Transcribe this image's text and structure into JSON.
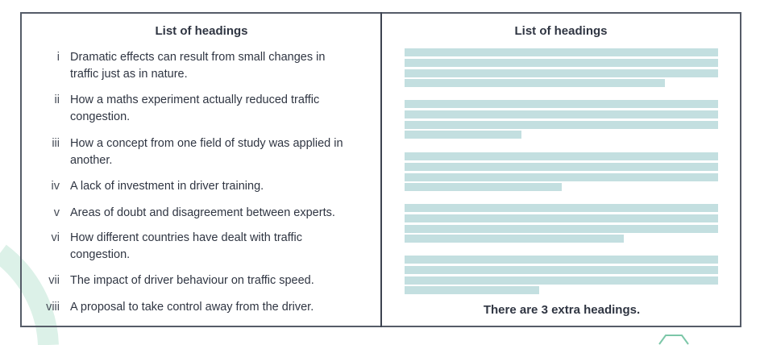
{
  "left_panel": {
    "title": "List of headings",
    "items": [
      {
        "numeral": "i",
        "text": "Dramatic effects can result from small changes in traffic just as in nature."
      },
      {
        "numeral": "ii",
        "text": "How a maths experiment actually reduced traffic congestion."
      },
      {
        "numeral": "iii",
        "text": "How a concept from one field of study was applied in another."
      },
      {
        "numeral": "iv",
        "text": "A lack of investment in driver training."
      },
      {
        "numeral": "v",
        "text": "Areas of doubt and disagreement between experts."
      },
      {
        "numeral": "vi",
        "text": "How different countries have dealt with traffic congestion."
      },
      {
        "numeral": "vii",
        "text": "The impact of driver behaviour on traffic speed."
      },
      {
        "numeral": "viii",
        "text": "A proposal to take control away from the driver."
      }
    ]
  },
  "right_panel": {
    "title": "List of headings",
    "note": "There are 3 extra headings.",
    "placeholder_color": "#c3dfe0"
  }
}
